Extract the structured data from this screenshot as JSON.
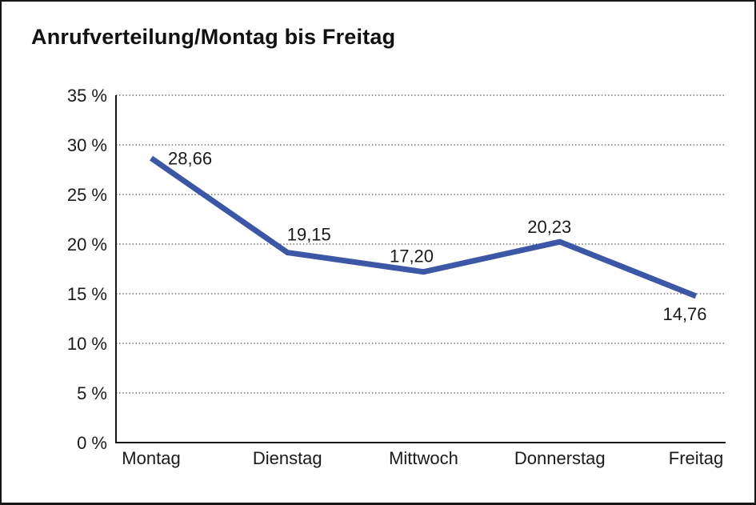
{
  "chart_data": {
    "type": "line",
    "title": "Anrufverteilung/Montag bis Freitag",
    "categories": [
      "Montag",
      "Dienstag",
      "Mittwoch",
      "Donnerstag",
      "Freitag"
    ],
    "series": [
      {
        "name": "Anrufverteilung",
        "values": [
          28.66,
          19.15,
          17.2,
          20.23,
          14.76
        ]
      }
    ],
    "value_labels": [
      "28,66",
      "19,15",
      "17,20",
      "20,23",
      "14,76"
    ],
    "y_tick_labels": [
      "35 %",
      "30 %",
      "25 %",
      "20 %",
      "15 %",
      "10 %",
      "5 %",
      "0 %"
    ],
    "ylim": [
      0,
      35
    ],
    "y_tick_step": 5,
    "xlabel": "",
    "ylabel": "",
    "legend": "none",
    "grid": "horizontal-dotted",
    "colors": {
      "line": "#3B57A6",
      "axis": "#161616",
      "gridline": "#555555",
      "text": "#1a1a1a",
      "background": "#ffffff"
    }
  }
}
